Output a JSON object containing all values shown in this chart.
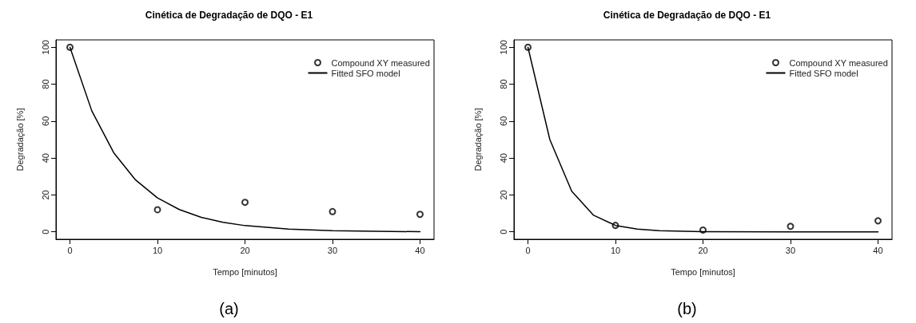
{
  "chart_data": [
    {
      "type": "scatter",
      "title": "Cinética de Degradação de DQO - E1",
      "xlabel": "Tempo [minutos]",
      "ylabel": "Degradação [%]",
      "annotations": [
        "(a)"
      ],
      "xlim": [
        -1.6,
        41.6
      ],
      "ylim": [
        -4,
        104
      ],
      "xticks": [
        0,
        10,
        20,
        30,
        40
      ],
      "yticks": [
        0,
        20,
        40,
        60,
        80,
        100
      ],
      "grid": false,
      "legend": "top right",
      "series": [
        {
          "name": "Compound XY measured",
          "marker": "circle",
          "color": "#000000",
          "x": [
            0,
            10,
            20,
            30,
            40
          ],
          "values": [
            100,
            12,
            16,
            11,
            9.5
          ]
        },
        {
          "name": "Fitted SFO model",
          "type": "line",
          "marker": "none",
          "line_style": "solid",
          "color": "#000000",
          "x": [
            0,
            2.5,
            5,
            7.5,
            10,
            12.5,
            15,
            17.5,
            20,
            25,
            30,
            35,
            40
          ],
          "values": [
            100,
            65.5,
            42.9,
            28.1,
            18.4,
            12.1,
            7.9,
            5.2,
            3.4,
            1.5,
            0.6,
            0.3,
            0.1
          ]
        }
      ]
    },
    {
      "type": "scatter",
      "title": "Cinética de Degradação de DQO - E1",
      "xlabel": "Tempo [minutos]",
      "ylabel": "Degradação [%]",
      "annotations": [
        "(b)"
      ],
      "xlim": [
        -1.6,
        41.6
      ],
      "ylim": [
        -4,
        104
      ],
      "xticks": [
        0,
        10,
        20,
        30,
        40
      ],
      "yticks": [
        0,
        20,
        40,
        60,
        80,
        100
      ],
      "grid": false,
      "legend": "top right",
      "series": [
        {
          "name": "Compound XY measured",
          "marker": "circle",
          "color": "#000000",
          "x": [
            0,
            10,
            20,
            30,
            40
          ],
          "values": [
            100,
            3.5,
            1,
            3,
            6
          ]
        },
        {
          "name": "Fitted SFO model",
          "type": "line",
          "marker": "none",
          "line_style": "solid",
          "color": "#000000",
          "x": [
            0,
            2.5,
            5,
            7.5,
            10,
            12.5,
            15,
            20,
            30,
            40
          ],
          "values": [
            100,
            50,
            22,
            9,
            3.5,
            1.5,
            0.6,
            0.1,
            0,
            0
          ]
        }
      ]
    }
  ]
}
